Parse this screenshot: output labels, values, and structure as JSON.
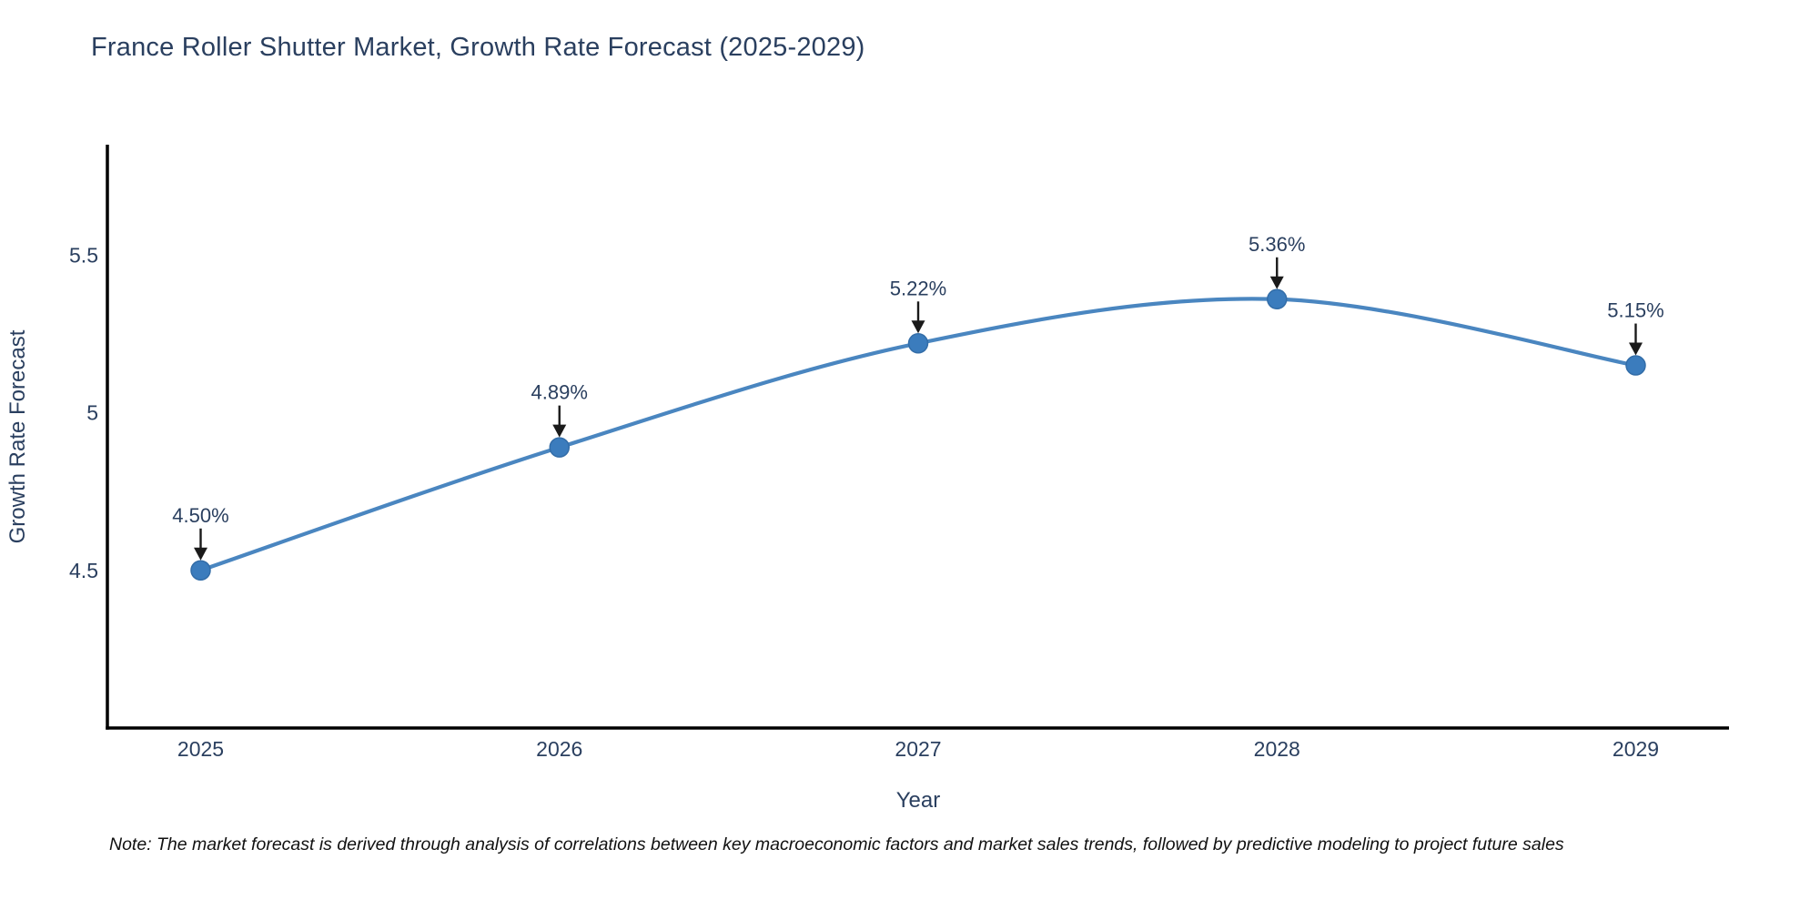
{
  "figure": {
    "title": "France Roller Shutter Market, Growth Rate Forecast (2025-2029)",
    "note": "Note: The market forecast is derived through analysis of correlations between key macroeconomic factors and market sales trends, followed by predictive modeling to project future sales"
  },
  "chart_data": {
    "type": "line",
    "title": "France Roller Shutter Market, Growth Rate Forecast (2025-2029)",
    "categories": [
      "2025",
      "2026",
      "2027",
      "2028",
      "2029"
    ],
    "x": [
      2025,
      2026,
      2027,
      2028,
      2029
    ],
    "values": [
      4.5,
      4.89,
      5.22,
      5.36,
      5.15
    ],
    "point_labels": [
      "4.50%",
      "4.89%",
      "5.22%",
      "5.36%",
      "5.15%"
    ],
    "xlabel": "Year",
    "ylabel": "Growth Rate Forecast",
    "xlim": [
      2024.74,
      2029.26
    ],
    "ylim": [
      4.0,
      5.85
    ],
    "yticks": [
      4.5,
      5,
      5.5
    ],
    "ytick_labels": [
      "4.5",
      "5",
      "5.5"
    ],
    "line_shape": "spline",
    "grid": false,
    "legend_position": "none",
    "annotation_arrows": true,
    "colors": {
      "line": "#4a86c0",
      "marker": "#3b7cbd",
      "marker_edge": "#336da8",
      "axis_line": "#000000",
      "text": "#2a3f5f",
      "annotation_arrow": "#1a1a1a",
      "background": "#ffffff"
    }
  }
}
